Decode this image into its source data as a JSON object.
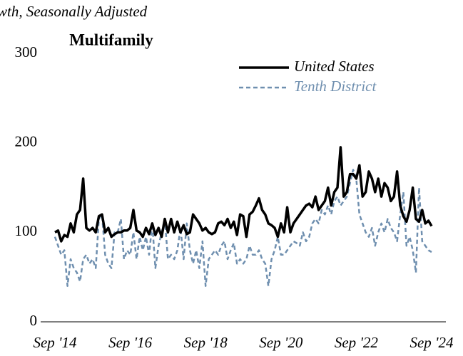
{
  "chart_data": {
    "type": "line",
    "subtitle": "wth, Seasonally Adjusted",
    "title": "Multifamily",
    "categories": [
      "Sep '14",
      null,
      null,
      null,
      null,
      null,
      null,
      null,
      null,
      null,
      null,
      null,
      null,
      null,
      null,
      null,
      null,
      null,
      null,
      null,
      null,
      null,
      null,
      null,
      "Sep '16",
      null,
      null,
      null,
      null,
      null,
      null,
      null,
      null,
      null,
      null,
      null,
      null,
      null,
      null,
      null,
      null,
      null,
      null,
      null,
      null,
      null,
      null,
      null,
      "Sep '18",
      null,
      null,
      null,
      null,
      null,
      null,
      null,
      null,
      null,
      null,
      null,
      null,
      null,
      null,
      null,
      null,
      null,
      null,
      null,
      null,
      null,
      null,
      null,
      "Sep '20",
      null,
      null,
      null,
      null,
      null,
      null,
      null,
      null,
      null,
      null,
      null,
      null,
      null,
      null,
      null,
      null,
      null,
      null,
      null,
      null,
      null,
      null,
      null,
      "Sep '22",
      null,
      null,
      null,
      null,
      null,
      null,
      null,
      null,
      null,
      null,
      null,
      null,
      null,
      null,
      null,
      null,
      null,
      null,
      null,
      null,
      null,
      null,
      null,
      "Sep '24"
    ],
    "series": [
      {
        "name": "United States",
        "color": "#000000",
        "dash": false,
        "values": [
          100,
          102,
          90,
          97,
          95,
          110,
          100,
          120,
          125,
          160,
          105,
          102,
          105,
          100,
          118,
          120,
          100,
          105,
          95,
          98,
          100,
          100,
          102,
          102,
          105,
          125,
          102,
          100,
          95,
          105,
          98,
          110,
          97,
          105,
          95,
          115,
          100,
          115,
          100,
          112,
          100,
          108,
          98,
          100,
          120,
          115,
          110,
          102,
          105,
          100,
          98,
          100,
          110,
          112,
          108,
          115,
          105,
          112,
          97,
          120,
          118,
          95,
          120,
          123,
          130,
          138,
          125,
          120,
          110,
          108,
          105,
          95,
          110,
          100,
          128,
          100,
          110,
          115,
          120,
          125,
          130,
          132,
          128,
          140,
          125,
          130,
          135,
          150,
          130,
          145,
          150,
          195,
          140,
          145,
          165,
          165,
          160,
          175,
          140,
          145,
          168,
          160,
          145,
          160,
          140,
          155,
          150,
          135,
          140,
          168,
          130,
          118,
          112,
          125,
          150,
          115,
          112,
          125,
          110,
          113,
          107
        ]
      },
      {
        "name": "Tenth District",
        "color": "#6f8faf",
        "dash": true,
        "values": [
          95,
          85,
          75,
          80,
          40,
          70,
          60,
          55,
          45,
          70,
          75,
          65,
          70,
          60,
          115,
          120,
          75,
          65,
          60,
          100,
          100,
          115,
          70,
          80,
          75,
          100,
          70,
          95,
          80,
          95,
          75,
          110,
          60,
          85,
          100,
          115,
          70,
          75,
          70,
          80,
          105,
          70,
          110,
          80,
          65,
          80,
          60,
          90,
          40,
          70,
          75,
          80,
          75,
          85,
          90,
          70,
          80,
          88,
          65,
          70,
          65,
          70,
          85,
          75,
          75,
          80,
          70,
          65,
          40,
          70,
          80,
          95,
          75,
          75,
          80,
          85,
          90,
          88,
          85,
          100,
          90,
          95,
          110,
          115,
          110,
          125,
          120,
          130,
          120,
          135,
          140,
          130,
          135,
          140,
          155,
          170,
          160,
          120,
          110,
          100,
          95,
          105,
          85,
          100,
          110,
          100,
          115,
          105,
          100,
          90,
          120,
          145,
          85,
          95,
          80,
          55,
          150,
          90,
          85,
          80,
          78
        ]
      }
    ],
    "ylim": [
      0,
      300
    ],
    "yticks": [
      0,
      100,
      200,
      300
    ],
    "grid": false,
    "legend": "top-right"
  }
}
